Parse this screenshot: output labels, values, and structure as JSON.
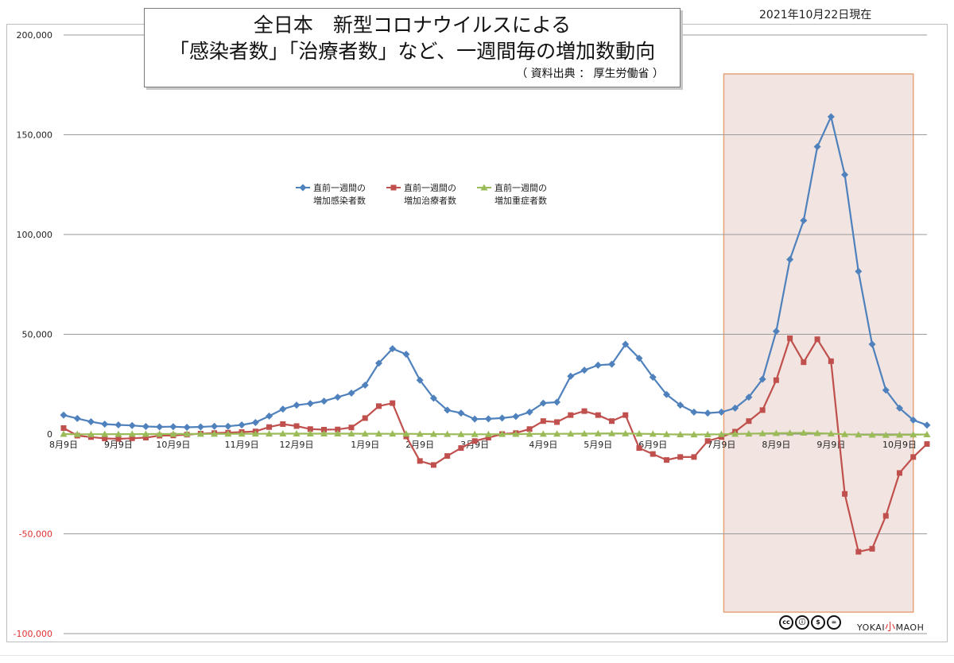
{
  "title": {
    "line1": "全日本　新型コロナウイルスによる",
    "line2": "「感染者数」「治療者数」など、一週間毎の増加数動向",
    "source": "（ 資料出典 ： 厚生労働省 ）"
  },
  "date_note": "2021年10月22日現在",
  "brand": {
    "prefix": "YOKAI",
    "mid": "小",
    "suffix": "MAOH"
  },
  "cc_icon": "creative-commons-by-nc-nd-icon",
  "colors": {
    "infected": "#4f81bd",
    "treated": "#c0504d",
    "severe": "#9bbb59",
    "highlight_fill": "#f2e4e0",
    "highlight_border": "#e6a37a",
    "negative_label": "#e03030"
  },
  "chart_data": {
    "type": "line",
    "ylim": [
      -100000,
      200000
    ],
    "yticks": [
      200000,
      150000,
      100000,
      50000,
      0,
      -50000,
      -100000
    ],
    "ytick_labels": [
      "200,000",
      "150,000",
      "100,000",
      "50,000",
      "0",
      "-50,000",
      "-100,000"
    ],
    "xlabels": [
      "8月9日",
      "9月9日",
      "10月9日",
      "11月9日",
      "12月9日",
      "1月9日",
      "2月9日",
      "3月9日",
      "4月9日",
      "5月9日",
      "6月9日",
      "7月9日",
      "8月9日",
      "9月9日",
      "10月9日"
    ],
    "xlabel_index": [
      0,
      4,
      8,
      13,
      17,
      22,
      26,
      30,
      35,
      39,
      43,
      48,
      52,
      56,
      61
    ],
    "highlight_range": [
      48,
      62
    ],
    "legend": {
      "placement": "top-center"
    },
    "series": [
      {
        "name_line1": "直前一週間の",
        "name_line2": "増加感染者数",
        "marker": "diamond",
        "values": [
          9500,
          7800,
          6200,
          5000,
          4600,
          4300,
          3800,
          3600,
          3700,
          3400,
          3600,
          3900,
          3900,
          4600,
          5800,
          9000,
          12500,
          14500,
          15300,
          16500,
          18500,
          20500,
          24500,
          35500,
          42800,
          40000,
          27000,
          18000,
          12000,
          10500,
          7500,
          7600,
          8000,
          8800,
          11000,
          15500,
          16000,
          29000,
          32000,
          34500,
          35000,
          45000,
          38000,
          28500,
          19800,
          14500,
          11000,
          10500,
          11000,
          13000,
          18500,
          27500,
          51500,
          87500,
          107000,
          144000,
          159000,
          130000,
          81500,
          45000,
          22000,
          13000,
          7000,
          4500
        ]
      },
      {
        "name_line1": "直前一週間の",
        "name_line2": "増加治療者数",
        "marker": "square",
        "values": [
          3000,
          -800,
          -1500,
          -2200,
          -2400,
          -2100,
          -1800,
          -800,
          -700,
          -300,
          200,
          500,
          700,
          1000,
          1300,
          3500,
          5000,
          4000,
          2500,
          2200,
          2300,
          3300,
          8000,
          14000,
          15500,
          -1200,
          -13500,
          -15500,
          -11000,
          -7000,
          -3500,
          -1800,
          0,
          500,
          2500,
          6500,
          6000,
          9500,
          11500,
          9500,
          6500,
          9500,
          -7000,
          -10000,
          -13000,
          -11500,
          -11500,
          -3500,
          -1500,
          1200,
          6500,
          12000,
          27000,
          48000,
          36000,
          47500,
          36500,
          -30000,
          -59000,
          -57500,
          -41000,
          -19500,
          -11500,
          -5000
        ]
      },
      {
        "name_line1": "直前一週間の",
        "name_line2": "増加重症者数",
        "marker": "triangle",
        "values": [
          0,
          -100,
          -80,
          -60,
          -40,
          -20,
          0,
          10,
          20,
          30,
          40,
          60,
          80,
          100,
          130,
          160,
          180,
          200,
          210,
          200,
          190,
          180,
          170,
          150,
          130,
          100,
          50,
          0,
          -60,
          -100,
          -120,
          -100,
          -60,
          -20,
          20,
          60,
          100,
          150,
          200,
          250,
          300,
          250,
          150,
          50,
          -100,
          -200,
          -250,
          -200,
          -100,
          50,
          150,
          300,
          400,
          500,
          600,
          400,
          200,
          -100,
          -300,
          -400,
          -500,
          -400,
          -300,
          -200
        ]
      }
    ]
  }
}
